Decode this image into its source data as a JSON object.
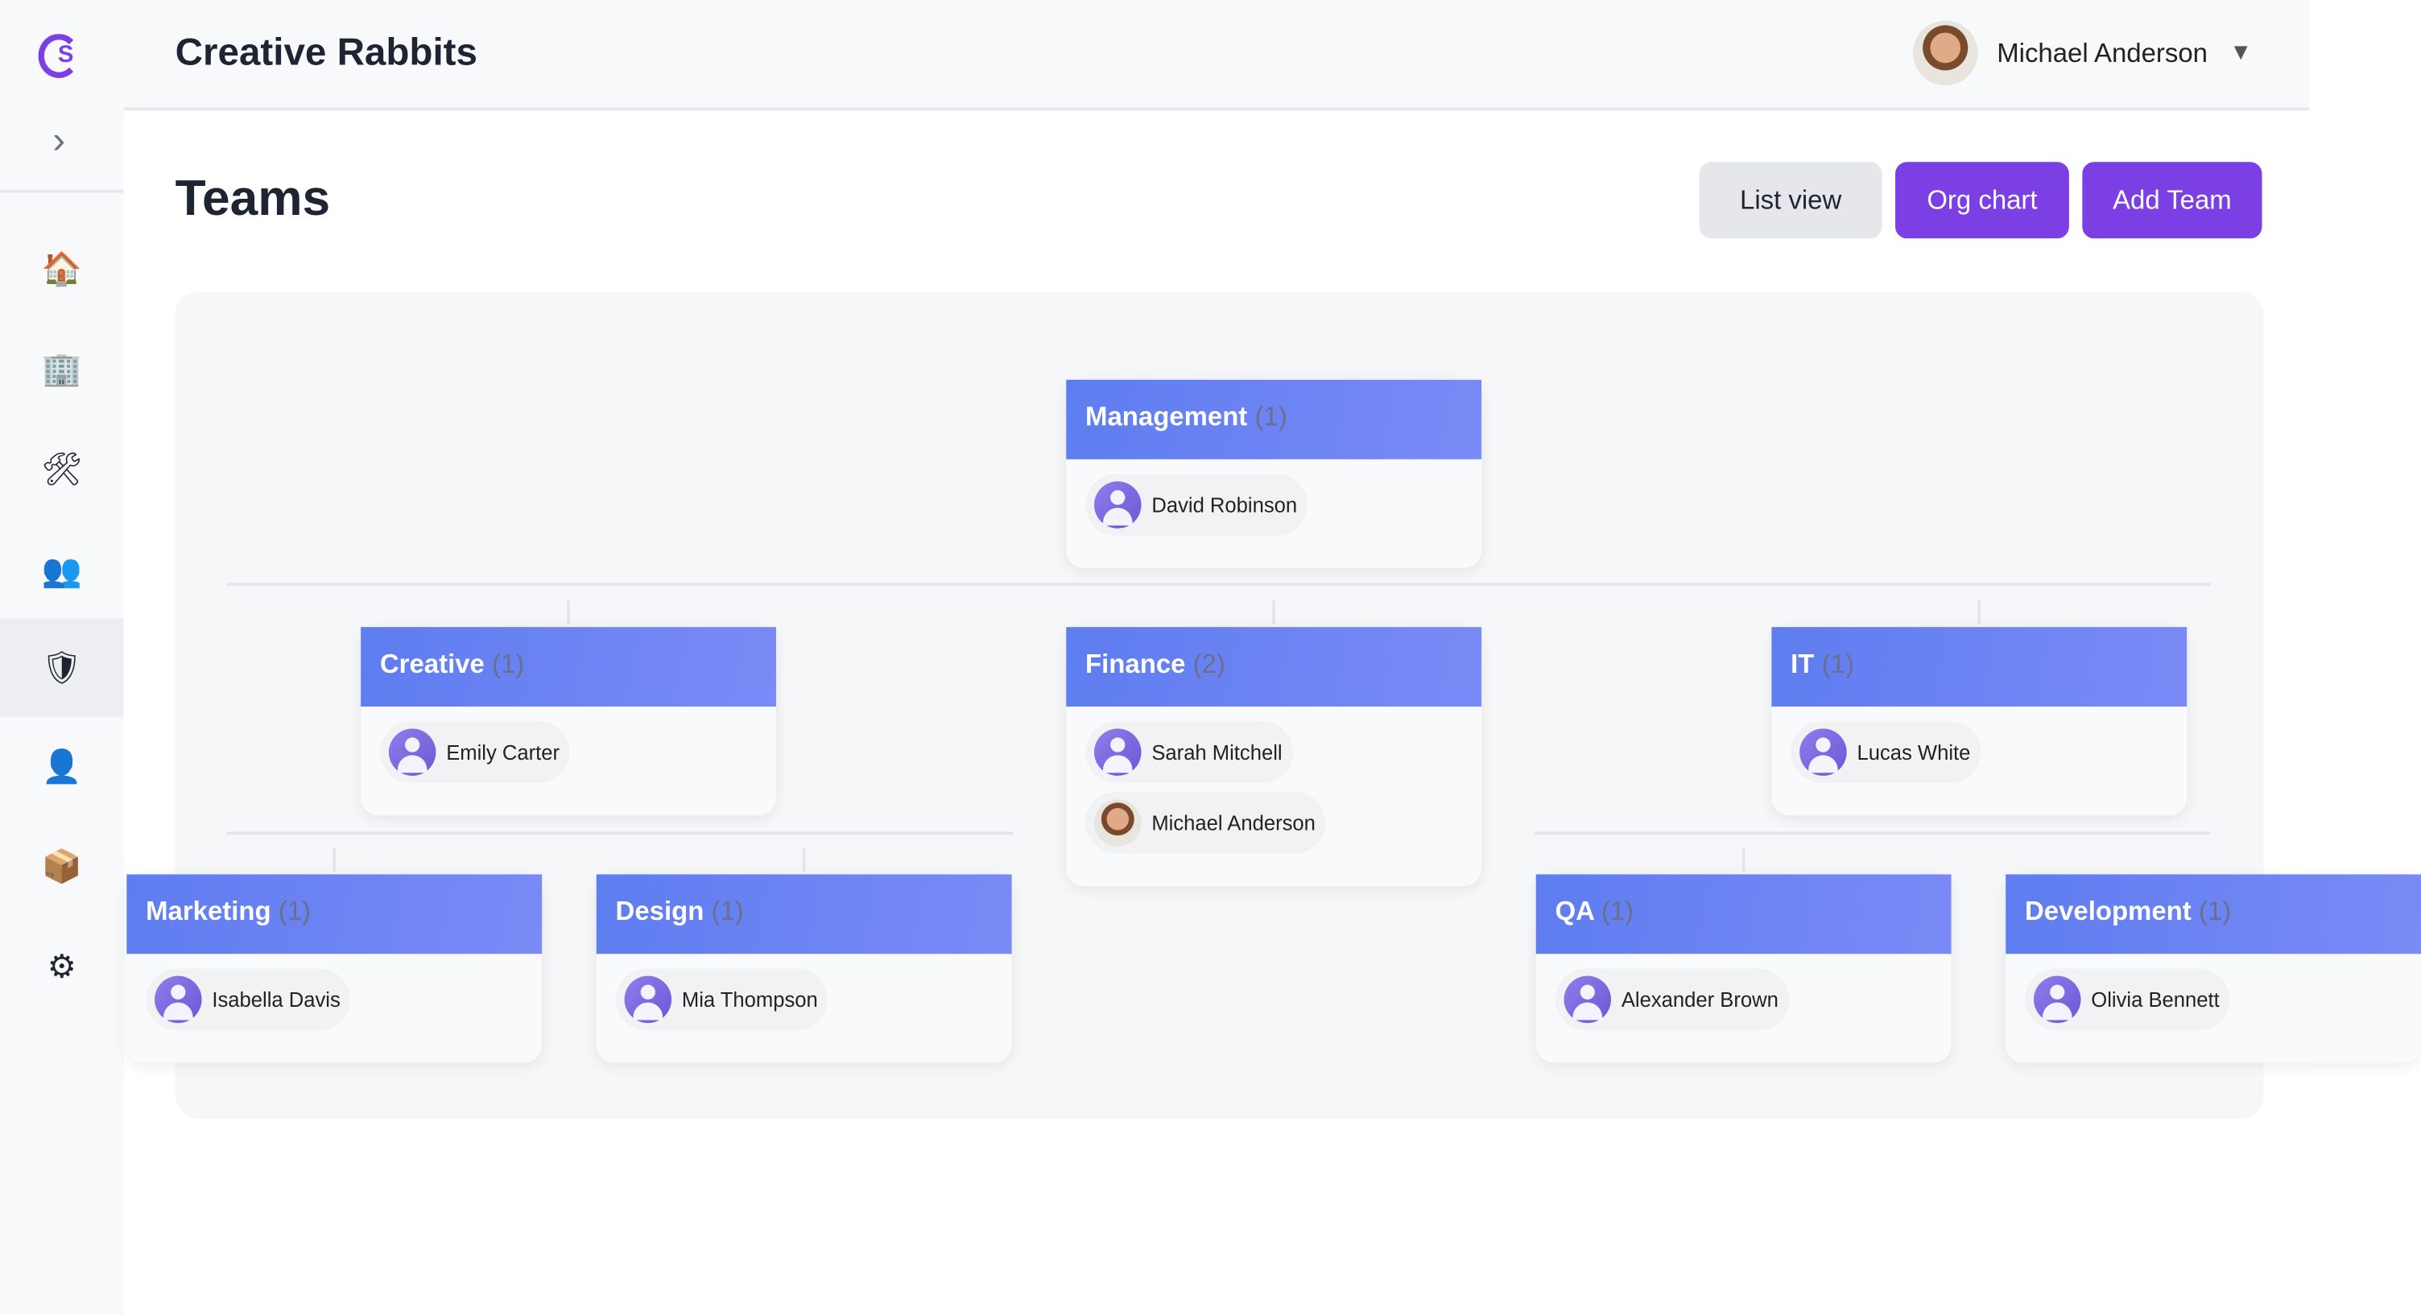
{
  "app": {
    "title": "Creative Rabbits"
  },
  "user": {
    "name": "Michael Anderson",
    "caret": "▼"
  },
  "sidebar": {
    "toggle": "›",
    "items": [
      {
        "icon": "home-icon",
        "glyph": "🏠"
      },
      {
        "icon": "building-icon",
        "glyph": "🏢"
      },
      {
        "icon": "tools-icon",
        "glyph": "🛠"
      },
      {
        "icon": "users-icon",
        "glyph": "👥"
      },
      {
        "icon": "shield-icon",
        "glyph": "🛡",
        "active": true
      },
      {
        "icon": "user-icon",
        "glyph": "👤"
      },
      {
        "icon": "package-icon",
        "glyph": "📦"
      },
      {
        "icon": "gear-icon",
        "glyph": "⚙"
      }
    ]
  },
  "page": {
    "title": "Teams",
    "list_view": "List view",
    "org_chart": "Org chart",
    "add_team": "Add Team"
  },
  "colors": {
    "accent": "#7c3aed",
    "card_header": "#6b84f3"
  },
  "teams": {
    "management": {
      "name": "Management",
      "count": "(1)",
      "members": [
        "David Robinson"
      ]
    },
    "creative": {
      "name": "Creative",
      "count": "(1)",
      "members": [
        "Emily Carter"
      ]
    },
    "finance": {
      "name": "Finance",
      "count": "(2)",
      "members": [
        "Sarah Mitchell",
        "Michael Anderson"
      ]
    },
    "it": {
      "name": "IT",
      "count": "(1)",
      "members": [
        "Lucas White"
      ]
    },
    "marketing": {
      "name": "Marketing",
      "count": "(1)",
      "members": [
        "Isabella Davis"
      ]
    },
    "design": {
      "name": "Design",
      "count": "(1)",
      "members": [
        "Mia Thompson"
      ]
    },
    "qa": {
      "name": "QA",
      "count": "(1)",
      "members": [
        "Alexander Brown"
      ]
    },
    "development": {
      "name": "Development",
      "count": "(1)",
      "members": [
        "Olivia Bennett"
      ]
    }
  }
}
